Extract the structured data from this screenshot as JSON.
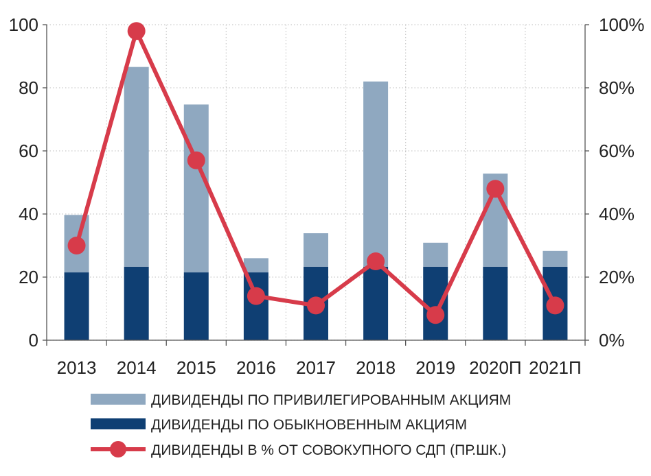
{
  "chart_data": {
    "type": "bar",
    "stacked": true,
    "secondary_axis": true,
    "categories": [
      "2013",
      "2014",
      "2015",
      "2016",
      "2017",
      "2018",
      "2019",
      "2020П",
      "2021П"
    ],
    "series": [
      {
        "name": "ДИВИДЕНДЫ ПО ОБЫКНОВЕННЫМ АКЦИЯМ",
        "type": "bar",
        "axis": "left",
        "color": "#0f3f73",
        "values": [
          21.5,
          23.3,
          21.5,
          21.5,
          23.3,
          23.3,
          23.3,
          23.3,
          23.3
        ]
      },
      {
        "name": "ДИВИДЕНДЫ ПО ПРИВИЛЕГИРОВАННЫМ АКЦИЯМ",
        "type": "bar",
        "axis": "left",
        "color": "#8fa8c0",
        "values": [
          18.2,
          63.3,
          53.2,
          4.5,
          10.6,
          58.7,
          7.6,
          29.5,
          5.0
        ]
      },
      {
        "name": "ДИВИДЕНДЫ В % ОТ СОВОКУПНОГО СДП (ПР.ШК.)",
        "type": "line",
        "axis": "right",
        "color": "#d73b4a",
        "values": [
          30,
          98,
          57,
          14,
          11,
          25,
          8,
          48,
          11
        ]
      }
    ],
    "ylim": [
      0,
      100
    ],
    "yticks": [
      "0",
      "20",
      "40",
      "60",
      "80",
      "100"
    ],
    "y2lim": [
      0,
      100
    ],
    "y2ticks": [
      "0%",
      "20%",
      "40%",
      "60%",
      "80%",
      "100%"
    ],
    "grid": true,
    "legend_position": "bottom",
    "legend_order": [
      1,
      0,
      2
    ]
  }
}
